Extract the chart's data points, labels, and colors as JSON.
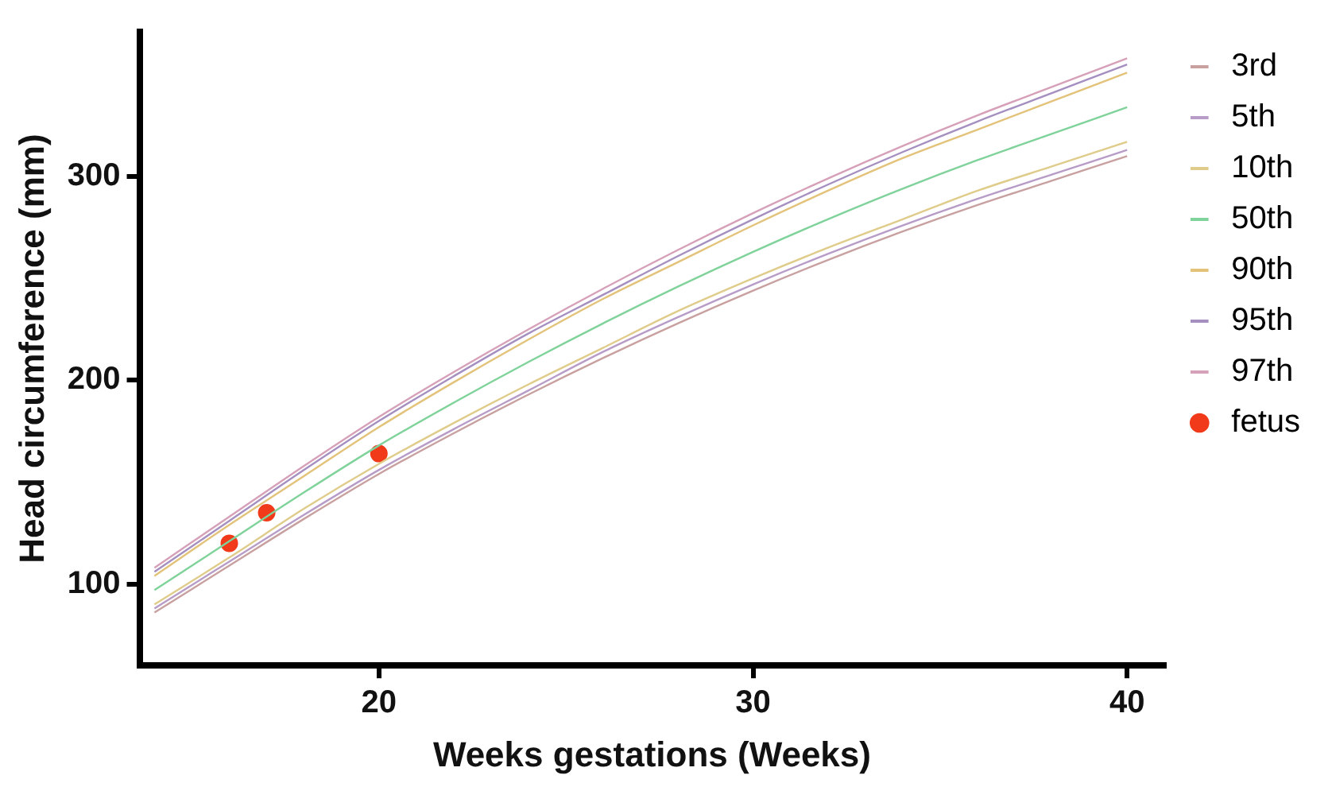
{
  "chart_data": {
    "type": "line",
    "xlabel": "Weeks gestations (Weeks)",
    "ylabel": "Head circumference (mm)",
    "x": [
      14,
      16,
      18,
      20,
      22,
      24,
      26,
      28,
      30,
      32,
      34,
      36,
      38,
      40
    ],
    "series": [
      {
        "name": "3rd",
        "color": "#c9a0a0",
        "values": [
          86,
          109,
          132,
          154,
          174,
          193,
          211,
          228,
          244,
          259,
          273,
          286,
          298,
          310
        ]
      },
      {
        "name": "5th",
        "color": "#b89cc8",
        "values": [
          88,
          111,
          134,
          156,
          176,
          195,
          214,
          231,
          247,
          262,
          276,
          289,
          301,
          313
        ]
      },
      {
        "name": "10th",
        "color": "#e0cc8a",
        "values": [
          90,
          113,
          137,
          159,
          179,
          198,
          216,
          234,
          250,
          265,
          279,
          293,
          305,
          317
        ]
      },
      {
        "name": "50th",
        "color": "#7fd39a",
        "values": [
          97,
          121,
          145,
          168,
          189,
          209,
          228,
          246,
          263,
          279,
          294,
          308,
          321,
          334
        ]
      },
      {
        "name": "90th",
        "color": "#e3c27a",
        "values": [
          104,
          129,
          153,
          177,
          199,
          220,
          240,
          258,
          276,
          293,
          309,
          323,
          337,
          351
        ]
      },
      {
        "name": "95th",
        "color": "#a58fc0",
        "values": [
          106,
          131,
          156,
          180,
          202,
          223,
          242,
          261,
          279,
          296,
          312,
          327,
          341,
          355
        ]
      },
      {
        "name": "97th",
        "color": "#d6a0b8",
        "values": [
          108,
          133,
          158,
          182,
          204,
          225,
          245,
          264,
          282,
          299,
          315,
          330,
          344,
          358
        ]
      },
      {
        "name": "fetus",
        "type": "scatter",
        "color": "#f03a1a",
        "marker": "circle",
        "x": [
          16,
          17,
          20
        ],
        "values": [
          120,
          135,
          164
        ]
      }
    ],
    "marker": "none",
    "line_style": "solid",
    "xlim": [
      13.6,
      41
    ],
    "xticks": [
      20,
      30,
      40
    ],
    "ylim": [
      60,
      371
    ],
    "yticks": [
      100,
      200,
      300
    ],
    "grid": false,
    "legend": "right"
  }
}
